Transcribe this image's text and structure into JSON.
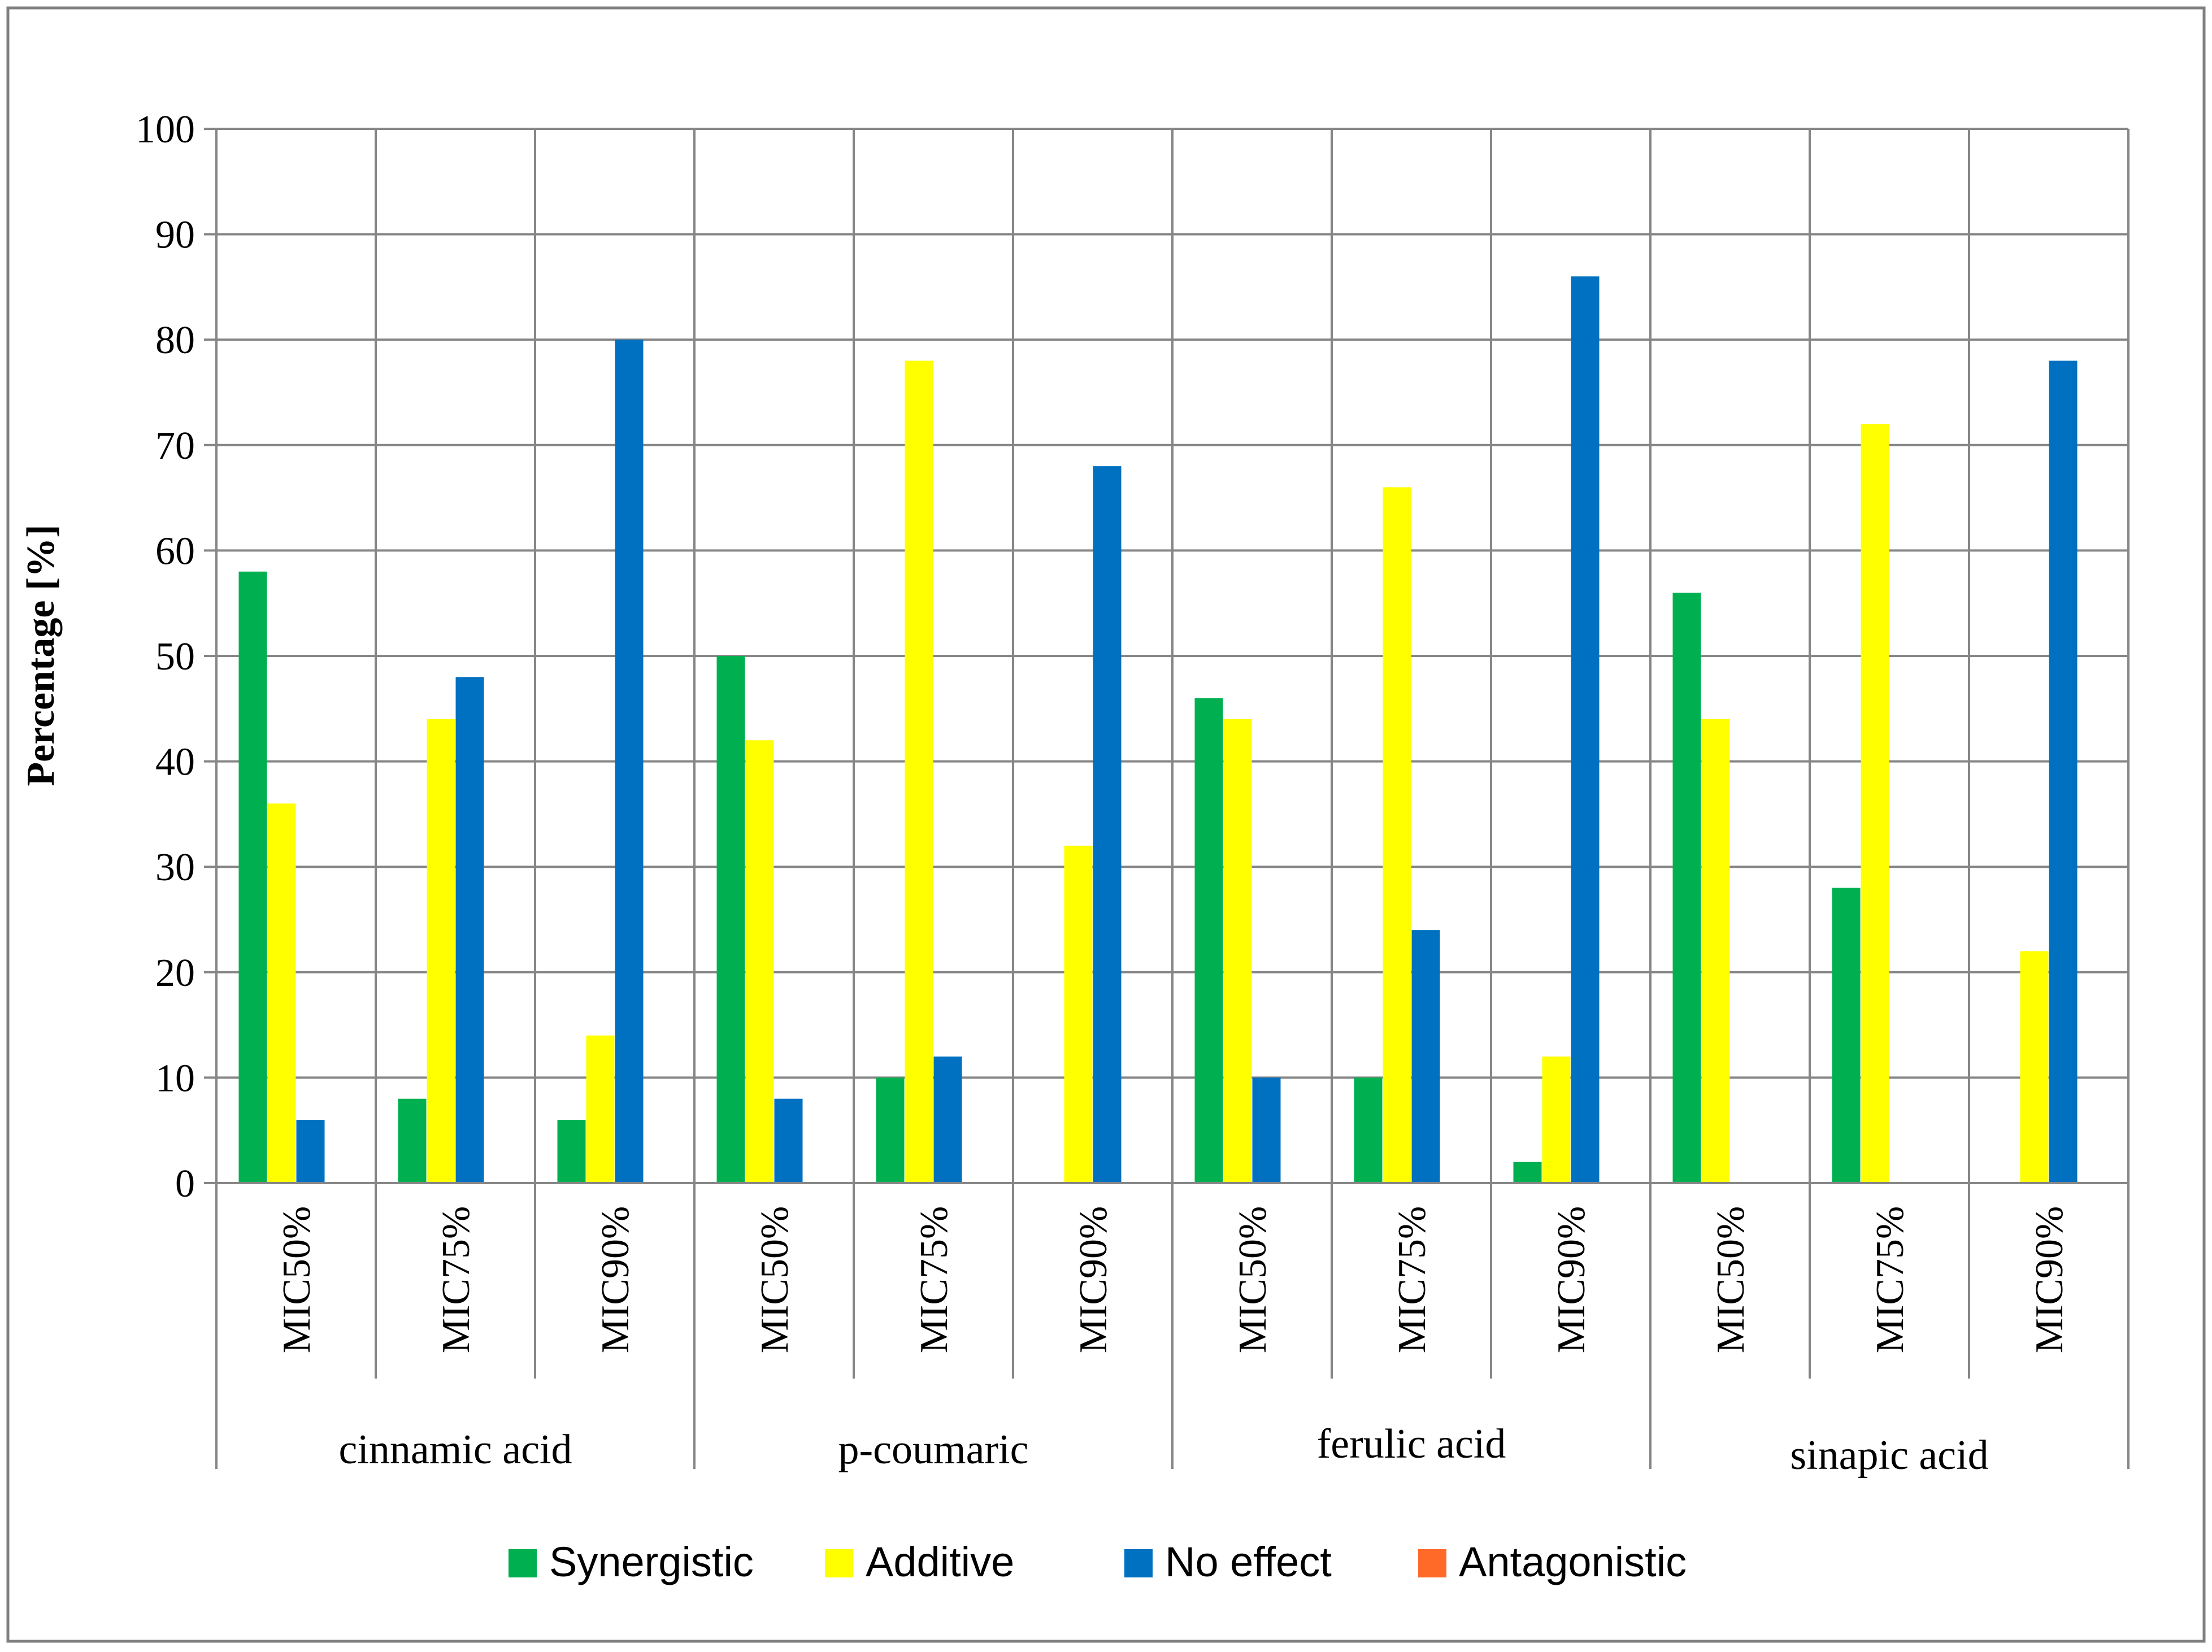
{
  "chart_data": {
    "type": "bar",
    "ylabel": "Percentage [%]",
    "xlabel": "",
    "ylim": [
      0,
      100
    ],
    "yticks": [
      0,
      10,
      20,
      30,
      40,
      50,
      60,
      70,
      80,
      90,
      100
    ],
    "grid": true,
    "legend_position": "bottom",
    "groups": [
      {
        "name": "cinnamic acid",
        "categories": [
          "MIC50%",
          "MIC75%",
          "MIC90%"
        ]
      },
      {
        "name": "p-coumaric",
        "categories": [
          "MIC50%",
          "MIC75%",
          "MIC90%"
        ]
      },
      {
        "name": "ferulic acid",
        "categories": [
          "MIC50%",
          "MIC75%",
          "MIC90%"
        ]
      },
      {
        "name": "sinapic acid",
        "categories": [
          "MIC50%",
          "MIC75%",
          "MIC90%"
        ]
      }
    ],
    "series": [
      {
        "name": "Synergistic",
        "color": "#00b050",
        "values": [
          58,
          8,
          6,
          50,
          10,
          0,
          46,
          10,
          2,
          56,
          28,
          0
        ]
      },
      {
        "name": "Additive",
        "color": "#ffff00",
        "values": [
          36,
          44,
          14,
          42,
          78,
          32,
          44,
          66,
          12,
          44,
          72,
          22
        ]
      },
      {
        "name": "No effect",
        "color": "#0070c0",
        "values": [
          6,
          48,
          80,
          8,
          12,
          68,
          10,
          24,
          86,
          0,
          0,
          78
        ]
      },
      {
        "name": "Antagonistic",
        "color": "#ff6a28",
        "values": [
          0,
          0,
          0,
          0,
          0,
          0,
          0,
          0,
          0,
          0,
          0,
          0
        ]
      }
    ]
  }
}
